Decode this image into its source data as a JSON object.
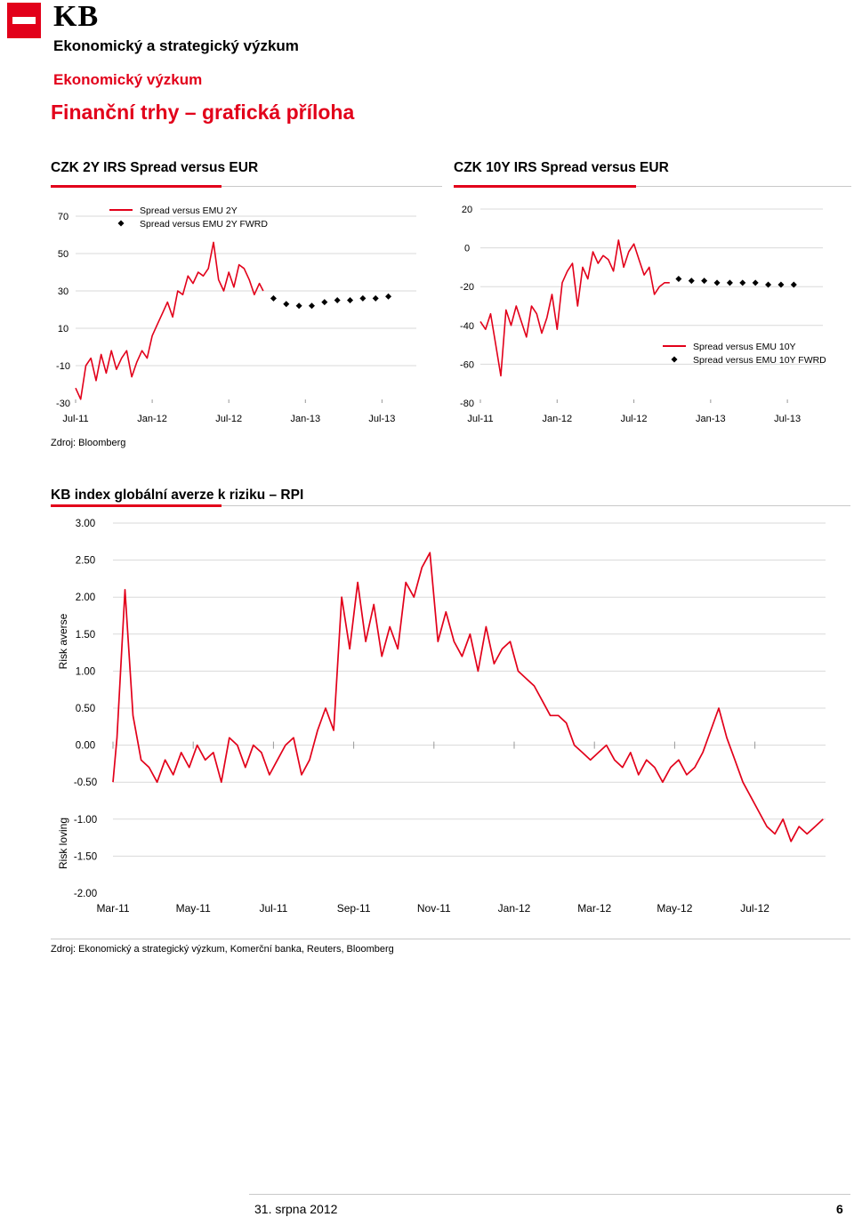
{
  "header": {
    "logo": "KB",
    "department": "Ekonomický a strategický výzkum",
    "subdepartment": "Ekonomický výzkum",
    "page_title": "Finanční trhy – grafická příloha"
  },
  "colors": {
    "accent": "#e2001a",
    "grid": "#d9d9d9",
    "text": "#000000"
  },
  "source_1": "Zdroj: Bloomberg",
  "source_2": "Zdroj: Ekonomický a strategický výzkum, Komerční banka, Reuters, Bloomberg",
  "footer": {
    "date": "31. srpna 2012",
    "page": "6"
  },
  "chart_data": [
    {
      "id": "chart1",
      "type": "line",
      "title": "CZK 2Y IRS Spread versus EUR",
      "x_tick_labels": [
        "Jul-11",
        "Jan-12",
        "Jul-12",
        "Jan-13",
        "Jul-13"
      ],
      "y_tick_labels": [
        "70",
        "50",
        "30",
        "10",
        "-10",
        "-30"
      ],
      "ylim": [
        -30,
        70
      ],
      "legend": [
        "Spread versus EMU 2Y",
        "Spread versus EMU 2Y FWRD"
      ],
      "series": [
        {
          "name": "Spread versus EMU 2Y",
          "x_months": [
            0,
            0.4,
            0.8,
            1.2,
            1.6,
            2.0,
            2.4,
            2.8,
            3.2,
            3.6,
            4.0,
            4.4,
            4.8,
            5.2,
            5.6,
            6.0,
            6.4,
            6.8,
            7.2,
            7.6,
            8.0,
            8.4,
            8.8,
            9.2,
            9.6,
            10.0,
            10.4,
            10.8,
            11.2,
            11.6,
            12.0,
            12.4,
            12.8,
            13.2,
            13.6,
            14.0,
            14.4,
            14.7
          ],
          "values": [
            -22,
            -28,
            -10,
            -6,
            -18,
            -4,
            -14,
            -2,
            -12,
            -6,
            -2,
            -16,
            -8,
            -2,
            -6,
            6,
            12,
            18,
            24,
            16,
            30,
            28,
            38,
            34,
            40,
            38,
            42,
            56,
            36,
            30,
            40,
            32,
            44,
            42,
            36,
            28,
            34,
            30
          ]
        },
        {
          "name": "Spread versus EMU 2Y FWRD",
          "x_months": [
            15.5,
            16.5,
            17.5,
            18.5,
            19.5,
            20.5,
            21.5,
            22.5,
            23.5,
            24.5
          ],
          "values": [
            26,
            23,
            22,
            22,
            24,
            25,
            25,
            26,
            26,
            27
          ]
        }
      ]
    },
    {
      "id": "chart2",
      "type": "line",
      "title": "CZK 10Y IRS Spread versus EUR",
      "x_tick_labels": [
        "Jul-11",
        "Jan-12",
        "Jul-12",
        "Jan-13",
        "Jul-13"
      ],
      "y_tick_labels": [
        "20",
        "0",
        "-20",
        "-40",
        "-60",
        "-80"
      ],
      "ylim": [
        -80,
        20
      ],
      "legend": [
        "Spread versus EMU 10Y",
        "Spread versus EMU 10Y FWRD"
      ],
      "series": [
        {
          "name": "Spread versus EMU 10Y",
          "x_months": [
            0,
            0.4,
            0.8,
            1.2,
            1.6,
            2.0,
            2.4,
            2.8,
            3.2,
            3.6,
            4.0,
            4.4,
            4.8,
            5.2,
            5.6,
            6.0,
            6.4,
            6.8,
            7.2,
            7.6,
            8.0,
            8.4,
            8.8,
            9.2,
            9.6,
            10.0,
            10.4,
            10.8,
            11.2,
            11.6,
            12.0,
            12.4,
            12.8,
            13.2,
            13.6,
            14.0,
            14.4,
            14.8
          ],
          "values": [
            -38,
            -42,
            -34,
            -50,
            -66,
            -32,
            -40,
            -30,
            -38,
            -46,
            -30,
            -34,
            -44,
            -36,
            -24,
            -42,
            -18,
            -12,
            -8,
            -30,
            -10,
            -16,
            -2,
            -8,
            -4,
            -6,
            -12,
            4,
            -10,
            -2,
            2,
            -6,
            -14,
            -10,
            -24,
            -20,
            -18,
            -18
          ]
        },
        {
          "name": "Spread versus EMU 10Y FWRD",
          "x_months": [
            15.5,
            16.5,
            17.5,
            18.5,
            19.5,
            20.5,
            21.5,
            22.5,
            23.5,
            24.5
          ],
          "values": [
            -16,
            -17,
            -17,
            -18,
            -18,
            -18,
            -18,
            -19,
            -19,
            -19
          ]
        }
      ]
    },
    {
      "id": "chart3",
      "type": "line",
      "title": "KB index globální averze k riziku – RPI",
      "x_tick_labels": [
        "Mar-11",
        "May-11",
        "Jul-11",
        "Sep-11",
        "Nov-11",
        "Jan-12",
        "Mar-12",
        "May-12",
        "Jul-12"
      ],
      "y_tick_labels": [
        "3.00",
        "2.50",
        "2.00",
        "1.50",
        "1.00",
        "0.50",
        "0.00",
        "-0.50",
        "-1.00",
        "-1.50",
        "-2.00"
      ],
      "ylim": [
        -2,
        3
      ],
      "ylabel_top": "Risk averse",
      "ylabel_bottom": "Risk loving",
      "series": [
        {
          "name": "RPI",
          "x_months": [
            0,
            0.1,
            0.3,
            0.5,
            0.7,
            0.9,
            1.1,
            1.3,
            1.5,
            1.7,
            1.9,
            2.1,
            2.3,
            2.5,
            2.7,
            2.9,
            3.1,
            3.3,
            3.5,
            3.7,
            3.9,
            4.1,
            4.3,
            4.5,
            4.7,
            4.9,
            5.1,
            5.3,
            5.5,
            5.7,
            5.9,
            6.1,
            6.3,
            6.5,
            6.7,
            6.9,
            7.1,
            7.3,
            7.5,
            7.7,
            7.9,
            8.1,
            8.3,
            8.5,
            8.7,
            8.9,
            9.1,
            9.3,
            9.5,
            9.7,
            9.9,
            10.1,
            10.3,
            10.5,
            10.7,
            10.9,
            11.1,
            11.3,
            11.5,
            11.7,
            11.9,
            12.1,
            12.3,
            12.5,
            12.7,
            12.9,
            13.1,
            13.3,
            13.5,
            13.7,
            13.9,
            14.1,
            14.3,
            14.5,
            14.7,
            14.9,
            15.1,
            15.3,
            15.5,
            15.7,
            15.9,
            16.1,
            16.3,
            16.5,
            16.7,
            16.9,
            17.1,
            17.3,
            17.5,
            17.7
          ],
          "values": [
            -0.5,
            0.1,
            2.1,
            0.4,
            -0.2,
            -0.3,
            -0.5,
            -0.2,
            -0.4,
            -0.1,
            -0.3,
            0.0,
            -0.2,
            -0.1,
            -0.5,
            0.1,
            0.0,
            -0.3,
            0.0,
            -0.1,
            -0.4,
            -0.2,
            0.0,
            0.1,
            -0.4,
            -0.2,
            0.2,
            0.5,
            0.2,
            2.0,
            1.3,
            2.2,
            1.4,
            1.9,
            1.2,
            1.6,
            1.3,
            2.2,
            2.0,
            2.4,
            2.6,
            1.4,
            1.8,
            1.4,
            1.2,
            1.5,
            1.0,
            1.6,
            1.1,
            1.3,
            1.4,
            1.0,
            0.9,
            0.8,
            0.6,
            0.4,
            0.4,
            0.3,
            0.0,
            -0.1,
            -0.2,
            -0.1,
            0.0,
            -0.2,
            -0.3,
            -0.1,
            -0.4,
            -0.2,
            -0.3,
            -0.5,
            -0.3,
            -0.2,
            -0.4,
            -0.3,
            -0.1,
            0.2,
            0.5,
            0.1,
            -0.2,
            -0.5,
            -0.7,
            -0.9,
            -1.1,
            -1.2,
            -1.0,
            -1.3,
            -1.1,
            -1.2,
            -1.1,
            -1.0
          ]
        }
      ]
    }
  ]
}
